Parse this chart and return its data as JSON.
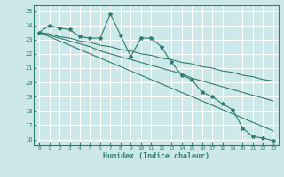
{
  "xlabel": "Humidex (Indice chaleur)",
  "ylabel": "",
  "bg_color": "#cce8e8",
  "grid_color": "#ffffff",
  "line_color": "#2e7d6e",
  "xlim": [
    -0.5,
    23.5
  ],
  "ylim": [
    15.6,
    25.4
  ],
  "yticks": [
    16,
    17,
    18,
    19,
    20,
    21,
    22,
    23,
    24,
    25
  ],
  "xticks": [
    0,
    1,
    2,
    3,
    4,
    5,
    6,
    7,
    8,
    9,
    10,
    11,
    12,
    13,
    14,
    15,
    16,
    17,
    18,
    19,
    20,
    21,
    22,
    23
  ],
  "data_x": [
    0,
    1,
    2,
    3,
    4,
    5,
    6,
    7,
    8,
    9,
    10,
    11,
    12,
    13,
    14,
    15,
    16,
    17,
    18,
    19,
    20,
    21,
    22,
    23
  ],
  "data_y": [
    23.5,
    24.0,
    23.8,
    23.7,
    23.2,
    23.1,
    23.1,
    24.8,
    23.3,
    21.8,
    23.1,
    23.1,
    22.5,
    21.4,
    20.5,
    20.2,
    19.3,
    19.0,
    18.5,
    18.1,
    16.8,
    16.2,
    16.1,
    15.9
  ],
  "reg1_y": [
    23.5,
    23.4,
    23.2,
    23.1,
    22.9,
    22.8,
    22.6,
    22.5,
    22.3,
    22.2,
    22.0,
    21.9,
    21.7,
    21.6,
    21.4,
    21.3,
    21.1,
    21.0,
    20.8,
    20.7,
    20.5,
    20.4,
    20.2,
    20.1
  ],
  "reg2_y": [
    23.5,
    23.3,
    23.1,
    22.9,
    22.7,
    22.5,
    22.2,
    22.0,
    21.8,
    21.6,
    21.4,
    21.2,
    21.0,
    20.8,
    20.6,
    20.3,
    20.1,
    19.9,
    19.7,
    19.5,
    19.3,
    19.1,
    18.9,
    18.7
  ],
  "reg3_y": [
    23.5,
    23.2,
    22.9,
    22.6,
    22.3,
    22.0,
    21.7,
    21.4,
    21.1,
    20.8,
    20.5,
    20.2,
    19.9,
    19.6,
    19.3,
    19.0,
    18.7,
    18.4,
    18.1,
    17.8,
    17.5,
    17.2,
    16.9,
    16.6
  ]
}
